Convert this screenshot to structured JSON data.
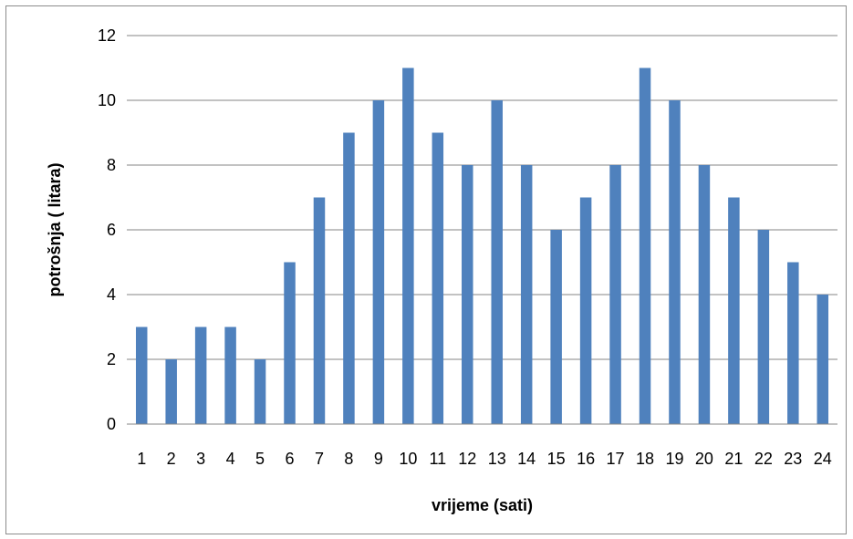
{
  "chart_data": {
    "type": "bar",
    "title": "",
    "xlabel": "vrijeme (sati)",
    "ylabel": "potrošnja ( litara)",
    "categories": [
      "1",
      "2",
      "3",
      "4",
      "5",
      "6",
      "7",
      "8",
      "9",
      "10",
      "11",
      "12",
      "13",
      "14",
      "15",
      "16",
      "17",
      "18",
      "19",
      "20",
      "21",
      "22",
      "23",
      "24"
    ],
    "values": [
      3,
      2,
      3,
      3,
      2,
      5,
      7,
      9,
      10,
      11,
      9,
      8,
      10,
      8,
      6,
      7,
      8,
      11,
      10,
      8,
      7,
      6,
      5,
      4
    ],
    "ylim": [
      0,
      12
    ],
    "yticks": [
      "0",
      "2",
      "4",
      "6",
      "8",
      "10",
      "12"
    ],
    "grid": true,
    "legend": "none",
    "bar_color": "#4f81bd",
    "grid_color": "#868686"
  }
}
